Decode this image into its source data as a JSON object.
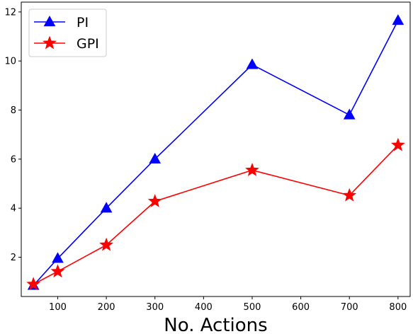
{
  "chart_data": {
    "type": "line",
    "xlabel": "No. Actions",
    "ylabel": "",
    "xlim": [
      25,
      825
    ],
    "ylim": [
      0.4,
      12.4
    ],
    "xticks": [
      100,
      200,
      300,
      400,
      500,
      600,
      700,
      800
    ],
    "yticks": [
      2,
      4,
      6,
      8,
      10,
      12
    ],
    "grid": false,
    "legend_position": "top-left",
    "series": [
      {
        "name": "PI",
        "color": "#0000ff",
        "marker": "triangle",
        "x": [
          50,
          100,
          200,
          300,
          500,
          700,
          800
        ],
        "y": [
          0.85,
          1.95,
          4.0,
          6.0,
          9.85,
          7.8,
          11.65
        ]
      },
      {
        "name": "GPI",
        "color": "#ff0000",
        "marker": "star",
        "x": [
          50,
          100,
          200,
          300,
          500,
          700,
          800
        ],
        "y": [
          0.9,
          1.42,
          2.5,
          4.28,
          5.55,
          4.52,
          6.57
        ]
      }
    ]
  }
}
